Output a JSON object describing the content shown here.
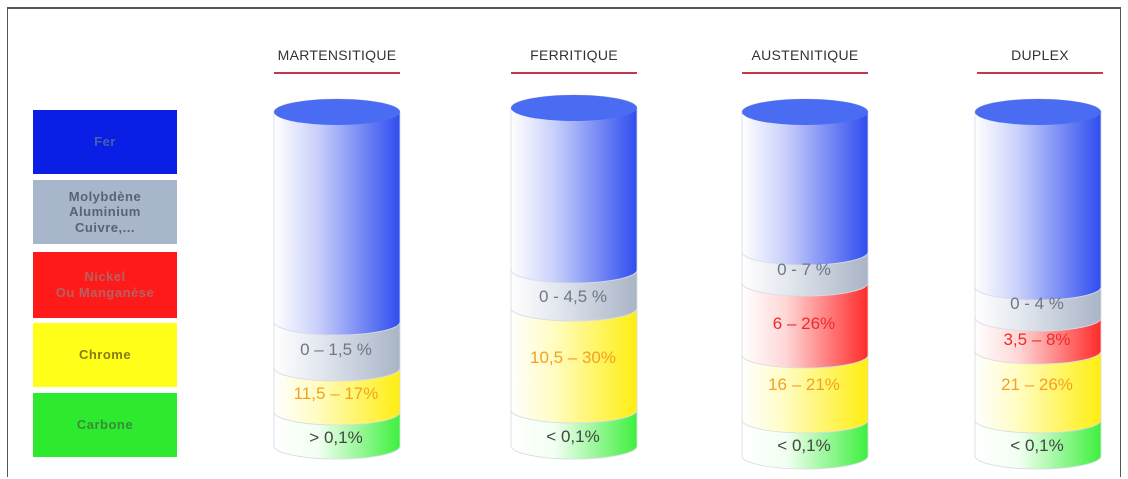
{
  "legend": [
    {
      "key": "fer",
      "label": "Fer",
      "bg": "#0a1fe6",
      "color": "#4a5ea8"
    },
    {
      "key": "moly",
      "label": "Molybdène\nAluminium\nCuivre,...",
      "bg": "#a8b6cc",
      "color": "#5a6272"
    },
    {
      "key": "nickel",
      "label": "Nickel\nOu Manganèse",
      "bg": "#ff1a1a",
      "color": "#b86060"
    },
    {
      "key": "chrome",
      "label": "Chrome",
      "bg": "#ffff1a",
      "color": "#8a7a1a"
    },
    {
      "key": "carbone",
      "label": "Carbone",
      "bg": "#2eea2e",
      "color": "#3a8a3a"
    }
  ],
  "columns": [
    {
      "title": "MARTENSITIQUE",
      "segments": [
        {
          "type": "fer"
        },
        {
          "type": "moly",
          "label": "0 – 1,5 %"
        },
        {
          "type": "chrome",
          "label": "11,5 – 17%"
        },
        {
          "type": "carbone",
          "label": "> 0,1%"
        }
      ]
    },
    {
      "title": "FERRITIQUE",
      "segments": [
        {
          "type": "fer"
        },
        {
          "type": "moly",
          "label": "0 - 4,5 %"
        },
        {
          "type": "chrome",
          "label": "10,5 – 30%"
        },
        {
          "type": "carbone",
          "label": "< 0,1%"
        }
      ]
    },
    {
      "title": "AUSTENITIQUE",
      "segments": [
        {
          "type": "fer"
        },
        {
          "type": "moly",
          "label": "0 - 7 %"
        },
        {
          "type": "nickel",
          "label": "6 – 26%"
        },
        {
          "type": "chrome",
          "label": "16 – 21%"
        },
        {
          "type": "carbone",
          "label": "< 0,1%"
        }
      ]
    },
    {
      "title": "DUPLEX",
      "segments": [
        {
          "type": "fer"
        },
        {
          "type": "moly",
          "label": "0 - 4 %"
        },
        {
          "type": "nickel",
          "label": "3,5 – 8%"
        },
        {
          "type": "chrome",
          "label": "21 – 26%"
        },
        {
          "type": "carbone",
          "label": "< 0,1%"
        }
      ]
    }
  ]
}
